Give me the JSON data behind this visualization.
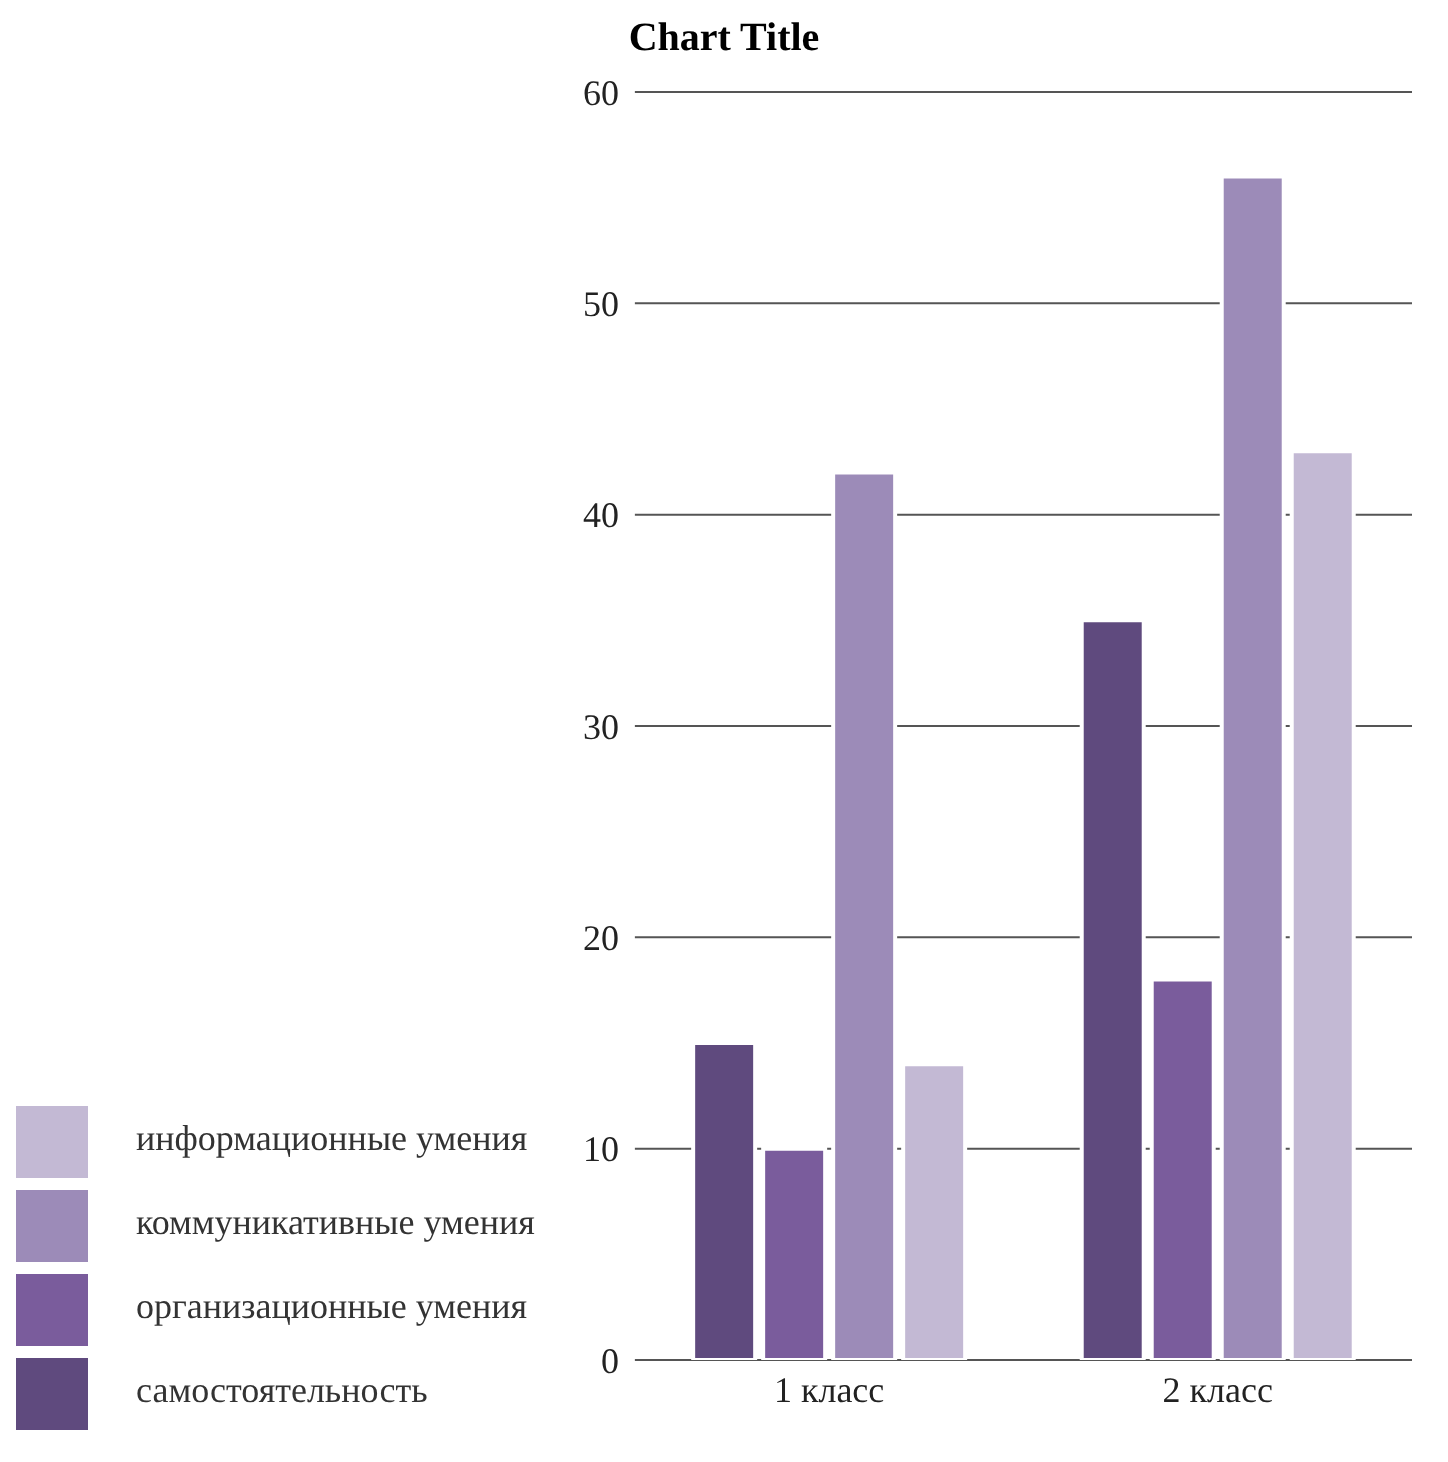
{
  "chart_data": {
    "type": "bar",
    "title": "Chart Title",
    "categories": [
      "1 класс",
      "2 класс"
    ],
    "series": [
      {
        "name": "самостоятельность",
        "color": "#5f4a7e",
        "values": [
          15,
          35
        ]
      },
      {
        "name": "организационные умения",
        "color": "#7a5c9c",
        "values": [
          10,
          18
        ]
      },
      {
        "name": "коммуникативные умения",
        "color": "#9c8bb8",
        "values": [
          42,
          56
        ]
      },
      {
        "name": "информационные умения",
        "color": "#c3b9d4",
        "values": [
          14,
          43
        ]
      }
    ],
    "ylim": [
      0,
      60
    ],
    "yticks": [
      0,
      10,
      20,
      30,
      40,
      50,
      60
    ],
    "grid": "y",
    "legend": "bottom"
  }
}
